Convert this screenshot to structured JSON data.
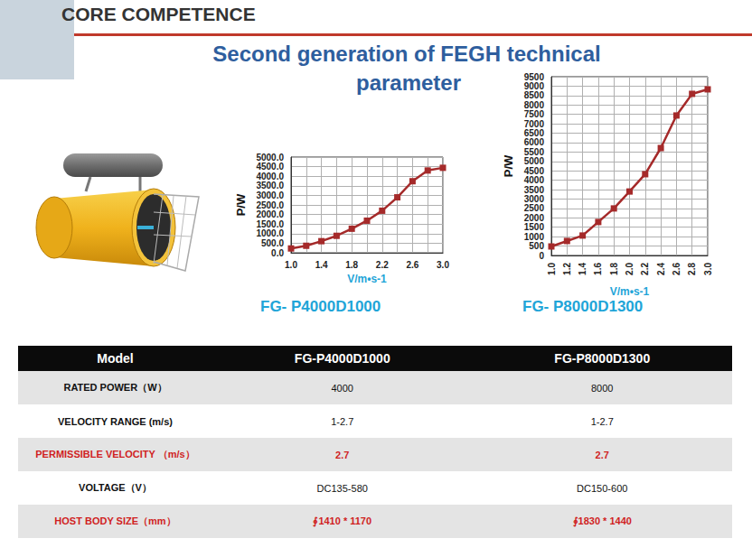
{
  "header": "CORE COMPETENCE",
  "title": [
    "Second generation of FEGH technical",
    "parameter"
  ],
  "chart_data": [
    {
      "type": "line",
      "title": "FG- P4000D1000",
      "x_label": "V/m•s-1",
      "y_label": "P/W",
      "x": [
        1.0,
        1.2,
        1.4,
        1.6,
        1.8,
        2.0,
        2.2,
        2.4,
        2.6,
        2.8,
        3.0
      ],
      "values": [
        230,
        370,
        610,
        890,
        1260,
        1680,
        2200,
        2900,
        3740,
        4300,
        4440
      ],
      "color": "#a52a2a",
      "marker": "square",
      "line_style": "solid",
      "xlim": [
        1,
        3
      ],
      "xticks": [
        {
          "value": 1,
          "label": "1.0"
        },
        {
          "value": 1.4,
          "label": "1.4"
        },
        {
          "value": 1.8,
          "label": "1.8"
        },
        {
          "value": 2.2,
          "label": "2.2"
        },
        {
          "value": 2.6,
          "label": "2.6"
        },
        {
          "value": 3,
          "label": "3.0"
        }
      ],
      "ylim": [
        0,
        5000
      ],
      "yticks": [
        {
          "value": 0,
          "label": "0.0"
        },
        {
          "value": 500,
          "label": "500.0"
        },
        {
          "value": 1000,
          "label": "1000.0"
        },
        {
          "value": 1500,
          "label": "1500.0"
        },
        {
          "value": 2000,
          "label": "2000.0"
        },
        {
          "value": 2500,
          "label": "2500.0"
        },
        {
          "value": 3000,
          "label": "3000.0"
        },
        {
          "value": 3500,
          "label": "3500.0"
        },
        {
          "value": 4000,
          "label": "4000.0"
        },
        {
          "value": 4500,
          "label": "4500.0"
        },
        {
          "value": 5000,
          "label": "5000.0"
        }
      ],
      "grid": true
    },
    {
      "type": "line",
      "title": "FG- P8000D1300",
      "x_label": "V/m•s-1",
      "y_label": "P/W",
      "x": [
        1.0,
        1.2,
        1.4,
        1.6,
        1.8,
        2.0,
        2.2,
        2.4,
        2.6,
        2.8,
        3.0
      ],
      "values": [
        480,
        770,
        1060,
        1780,
        2500,
        3400,
        4320,
        5710,
        7440,
        8590,
        8830
      ],
      "color": "#a52a2a",
      "marker": "square",
      "line_style": "solid",
      "xlim": [
        1,
        3
      ],
      "xticks": [
        {
          "value": 1,
          "label": "1.0"
        },
        {
          "value": 1.2,
          "label": "1.2"
        },
        {
          "value": 1.4,
          "label": "1.4"
        },
        {
          "value": 1.6,
          "label": "1.6"
        },
        {
          "value": 1.8,
          "label": "1.8"
        },
        {
          "value": 2,
          "label": "2.0"
        },
        {
          "value": 2.2,
          "label": "2.2"
        },
        {
          "value": 2.4,
          "label": "2.4"
        },
        {
          "value": 2.6,
          "label": "2.6"
        },
        {
          "value": 2.8,
          "label": "2.8"
        },
        {
          "value": 3,
          "label": "3.0"
        }
      ],
      "ylim": [
        0,
        9500
      ],
      "yticks": [
        0,
        500,
        1000,
        1500,
        2000,
        2500,
        3000,
        3500,
        4000,
        4500,
        5000,
        5500,
        6000,
        6500,
        7000,
        7500,
        8000,
        8500,
        9000,
        9500
      ],
      "grid": true
    }
  ],
  "table": {
    "header": [
      "Model",
      "FG-P4000D1000",
      "FG-P8000D1300"
    ],
    "rows": [
      [
        "RATED POWER（W）",
        "4000",
        "8000"
      ],
      [
        "VELOCITY RANGE (m/s)",
        "1-2.7",
        "1-2.7"
      ],
      [
        "PERMISSIBLE VELOCITY （m/s）",
        "2.7",
        "2.7"
      ],
      [
        "VOLTAGE（V）",
        "DC135-580",
        "DC150-600"
      ],
      [
        "HOST BODY SIZE（mm）",
        "∮1410 * 1170",
        "∮1830 * 1440"
      ]
    ]
  }
}
